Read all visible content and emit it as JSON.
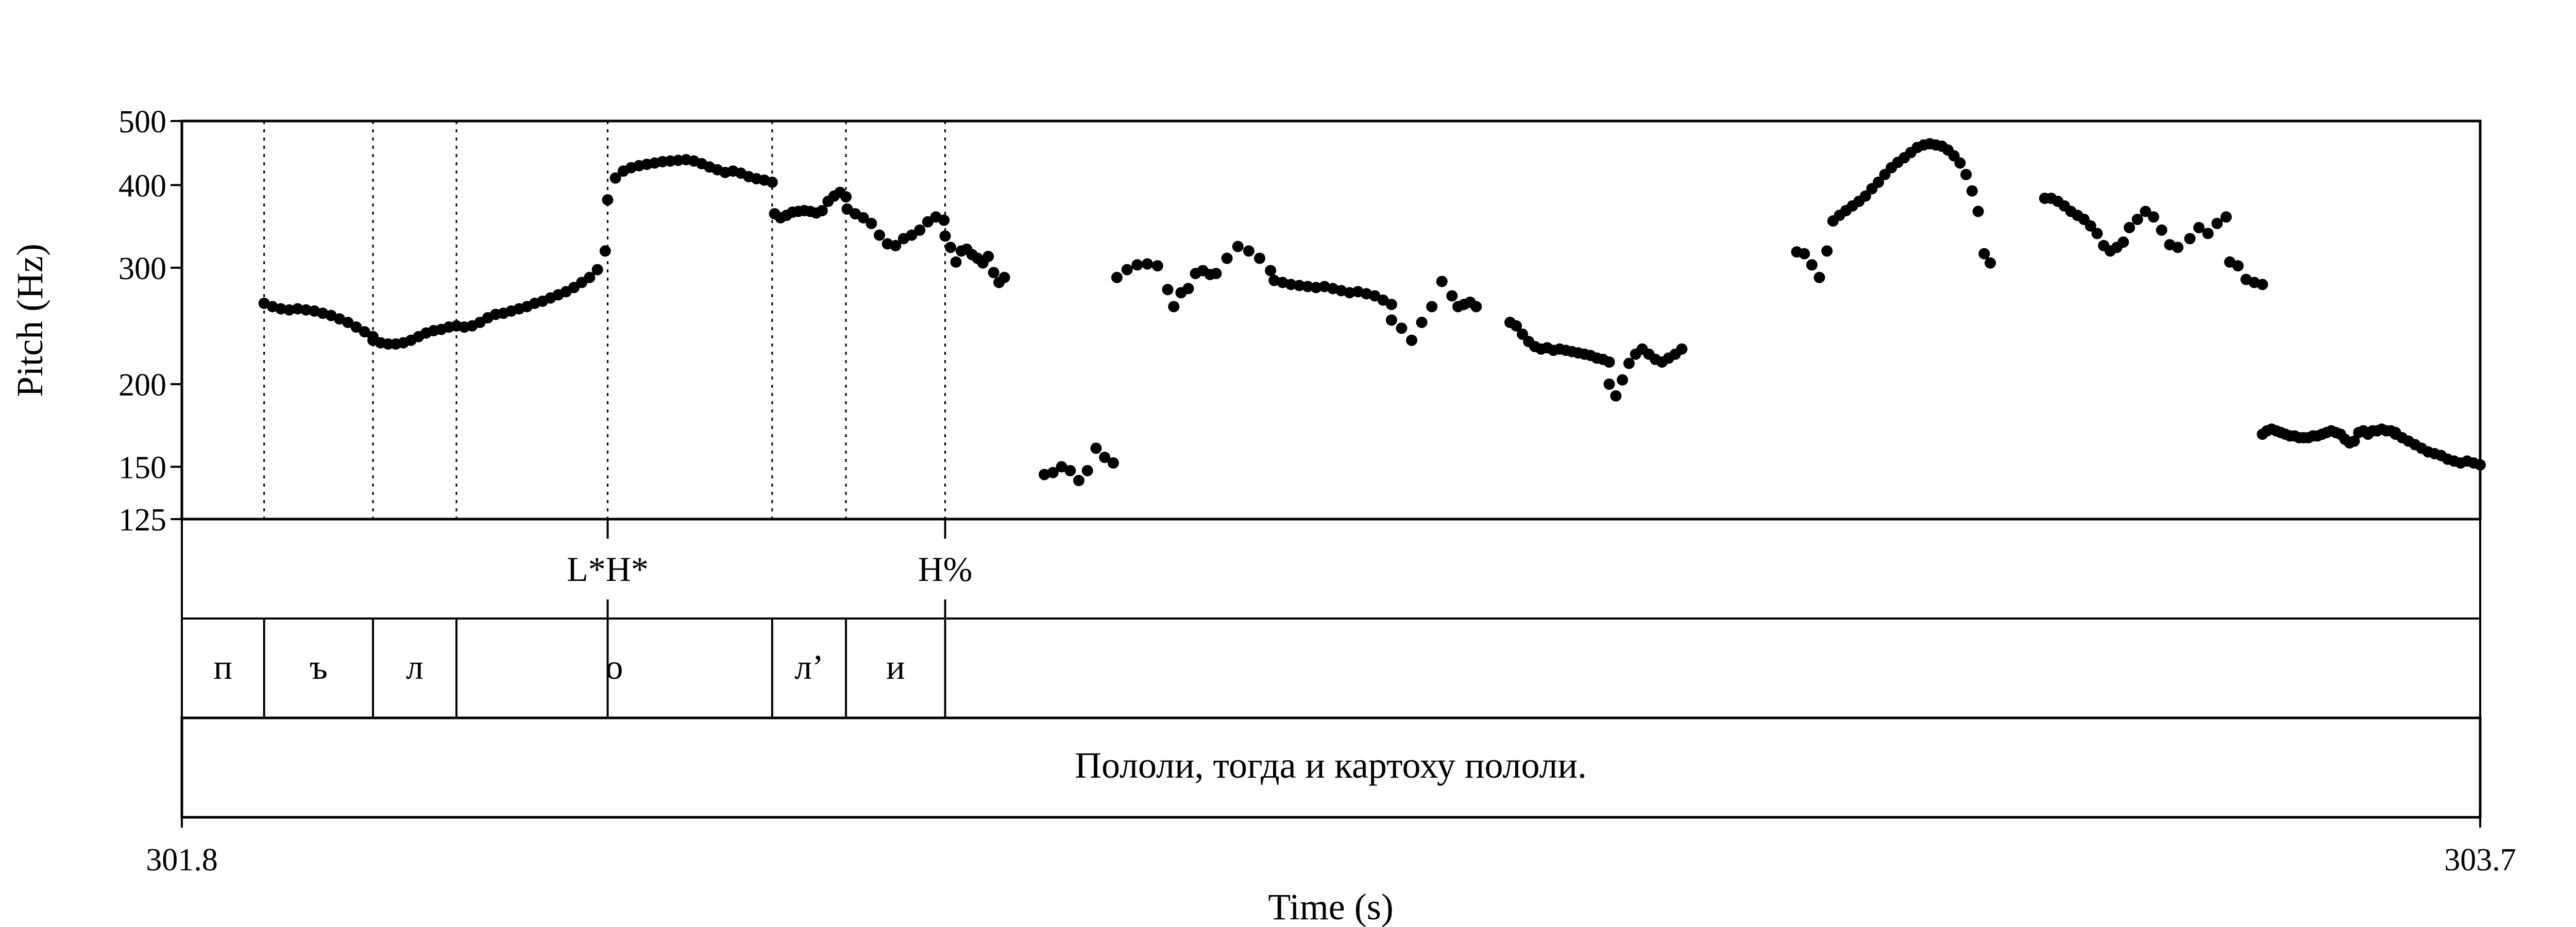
{
  "chart_data": {
    "type": "scatter",
    "title": "",
    "xlabel": "Time (s)",
    "ylabel": "Pitch (Hz)",
    "xlim": [
      301.8,
      303.7
    ],
    "ylim": [
      125,
      500
    ],
    "y_scale": "log",
    "xticks": [
      "301.8",
      "303.7"
    ],
    "yticks": [
      {
        "value": 125,
        "label": "125"
      },
      {
        "value": 150,
        "label": "150"
      },
      {
        "value": 200,
        "label": "200"
      },
      {
        "value": 300,
        "label": "300"
      },
      {
        "value": 400,
        "label": "400"
      },
      {
        "value": 500,
        "label": "500"
      }
    ],
    "grid": false,
    "marker_color": "#000000",
    "boundaries": [
      301.868,
      301.958,
      302.027,
      302.152,
      302.288,
      302.349,
      302.431
    ],
    "tones": [
      {
        "time": 302.152,
        "label": "L*H*"
      },
      {
        "time": 302.431,
        "label": "H%"
      }
    ],
    "segments": [
      {
        "start": 301.8,
        "end": 301.868,
        "label": "п"
      },
      {
        "start": 301.868,
        "end": 301.958,
        "label": "ъ"
      },
      {
        "start": 301.958,
        "end": 302.027,
        "label": "л"
      },
      {
        "start": 302.027,
        "end": 302.288,
        "label": "о"
      },
      {
        "start": 302.288,
        "end": 302.349,
        "label": "л’"
      },
      {
        "start": 302.349,
        "end": 302.431,
        "label": "и"
      }
    ],
    "sentence": "Пололи, тогда и картоху пололи.",
    "pitch_segments": [
      {
        "start": 301.868,
        "end": 301.958,
        "values": [
          265,
          262,
          260,
          259,
          260,
          259,
          258,
          256,
          254,
          251,
          248,
          244,
          240,
          236
        ]
      },
      {
        "start": 301.958,
        "end": 302.027,
        "values": [
          233,
          231,
          230,
          230,
          231,
          233,
          236,
          239,
          241,
          242,
          244,
          245
        ]
      },
      {
        "start": 302.027,
        "end": 302.15,
        "values": [
          245,
          244,
          245,
          248,
          252,
          255,
          256,
          258,
          260,
          262,
          265,
          267,
          270,
          273,
          276,
          280,
          285,
          290,
          298,
          318
        ]
      },
      {
        "start": 302.152,
        "end": 302.288,
        "values": [
          380,
          410,
          420,
          425,
          428,
          430,
          432,
          434,
          435,
          436,
          437,
          435,
          431,
          426,
          422,
          418,
          420,
          417,
          412,
          409,
          407,
          404
        ]
      },
      {
        "start": 302.29,
        "end": 302.349,
        "values": [
          362,
          357,
          360,
          364,
          365,
          366,
          365,
          363,
          366,
          378,
          385,
          390,
          384
        ]
      },
      {
        "start": 302.35,
        "end": 302.43,
        "values": [
          368,
          362,
          357,
          350,
          336,
          326,
          324,
          332,
          336,
          342,
          352,
          358,
          354
        ]
      },
      {
        "start": 302.431,
        "end": 302.48,
        "values": [
          335,
          322,
          306,
          318,
          320,
          314,
          310,
          305,
          312,
          295,
          285,
          290
        ]
      },
      {
        "start": 302.513,
        "end": 302.57,
        "values": [
          146,
          147,
          150,
          148,
          143,
          148,
          160,
          155,
          152
        ]
      },
      {
        "start": 302.573,
        "end": 302.615,
        "values": [
          290,
          298,
          303,
          304,
          302,
          278
        ]
      },
      {
        "start": 302.62,
        "end": 302.65,
        "values": [
          262,
          275,
          279,
          294,
          297,
          293
        ]
      },
      {
        "start": 302.655,
        "end": 302.7,
        "values": [
          294,
          310,
          323,
          318,
          310,
          297
        ]
      },
      {
        "start": 302.703,
        "end": 302.8,
        "values": [
          287,
          285,
          283,
          282,
          281,
          280,
          281,
          279,
          277,
          275,
          276,
          274,
          272,
          268,
          264
        ]
      },
      {
        "start": 302.8,
        "end": 302.85,
        "values": [
          250,
          243,
          233,
          248,
          262,
          286,
          272
        ]
      },
      {
        "start": 302.855,
        "end": 302.87,
        "values": [
          262,
          264,
          266,
          262
        ]
      },
      {
        "start": 302.898,
        "end": 302.98,
        "values": [
          248,
          245,
          238,
          232,
          228,
          226,
          227,
          225,
          226,
          225,
          224,
          223,
          222,
          221,
          219,
          218,
          216
        ]
      },
      {
        "start": 302.98,
        "end": 303.04,
        "values": [
          200,
          192,
          203,
          215,
          222,
          226,
          222,
          218,
          216,
          219,
          222,
          226
        ]
      },
      {
        "start": 303.135,
        "end": 303.16,
        "values": [
          317,
          315,
          303,
          290,
          318
        ]
      },
      {
        "start": 303.165,
        "end": 303.24,
        "values": [
          353,
          360,
          366,
          372,
          378,
          385,
          395,
          404,
          415,
          425,
          433,
          440,
          448,
          456,
          460
        ]
      },
      {
        "start": 303.245,
        "end": 303.295,
        "values": [
          462,
          460,
          458,
          452,
          443,
          432,
          415,
          392,
          365,
          315,
          305
        ]
      },
      {
        "start": 303.34,
        "end": 303.405,
        "values": [
          382,
          382,
          378,
          372,
          365,
          360,
          355,
          347,
          338,
          324,
          318,
          322,
          328
        ]
      },
      {
        "start": 303.41,
        "end": 303.45,
        "values": [
          345,
          355,
          365,
          358,
          342,
          325,
          322
        ]
      },
      {
        "start": 303.46,
        "end": 303.49,
        "values": [
          332,
          345,
          338,
          350,
          358
        ]
      },
      {
        "start": 303.493,
        "end": 303.52,
        "values": [
          306,
          302,
          288,
          285,
          283
        ]
      },
      {
        "start": 303.52,
        "end": 303.63,
        "values": [
          168,
          170,
          171,
          170,
          169,
          168,
          167,
          167,
          166,
          166,
          166,
          167,
          167,
          168,
          169,
          170,
          169,
          168,
          165,
          163,
          164,
          169,
          170,
          168,
          170,
          170,
          171,
          170,
          170,
          169
        ]
      },
      {
        "start": 303.63,
        "end": 303.7,
        "values": [
          168,
          166,
          164,
          162,
          160,
          158,
          157,
          156,
          154,
          153,
          152,
          153,
          152,
          151
        ]
      }
    ]
  }
}
